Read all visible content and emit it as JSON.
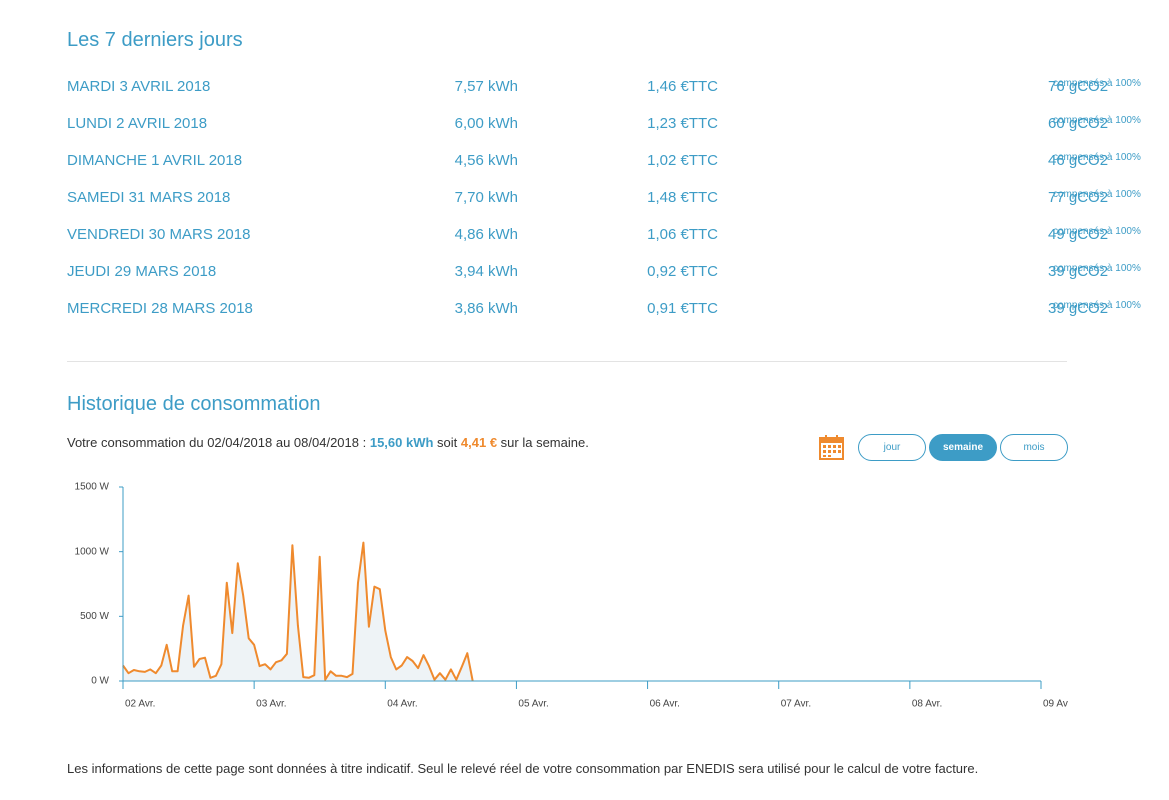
{
  "title": "Les 7 derniers jours",
  "rows": [
    {
      "date": "MARDI 3 AVRIL 2018",
      "kwh": "7,57 kWh",
      "price": "1,46 €TTC",
      "co2": "76 gCO2",
      "note": "compensés à 100%"
    },
    {
      "date": "LUNDI 2 AVRIL 2018",
      "kwh": "6,00 kWh",
      "price": "1,23 €TTC",
      "co2": "60 gCO2",
      "note": "compensés à 100%"
    },
    {
      "date": "DIMANCHE 1 AVRIL 2018",
      "kwh": "4,56 kWh",
      "price": "1,02 €TTC",
      "co2": "46 gCO2",
      "note": "compensés à 100%"
    },
    {
      "date": "SAMEDI 31 MARS 2018",
      "kwh": "7,70 kWh",
      "price": "1,48 €TTC",
      "co2": "77 gCO2",
      "note": "compensés à 100%"
    },
    {
      "date": "VENDREDI 30 MARS 2018",
      "kwh": "4,86 kWh",
      "price": "1,06 €TTC",
      "co2": "49 gCO2",
      "note": "compensés à 100%"
    },
    {
      "date": "JEUDI 29 MARS 2018",
      "kwh": "3,94 kWh",
      "price": "0,92 €TTC",
      "co2": "39 gCO2",
      "note": "compensés à 100%"
    },
    {
      "date": "MERCREDI 28 MARS 2018",
      "kwh": "3,86 kWh",
      "price": "0,91 €TTC",
      "co2": "39 gCO2",
      "note": "compensés à 100%"
    }
  ],
  "history_title": "Historique de consommation",
  "summary": {
    "prefix": "Votre consommation du 02/04/2018 au 08/04/2018 : ",
    "kwh": "15,60 kWh",
    "middle": " soit ",
    "eur": "4,41 €",
    "suffix": " sur la semaine."
  },
  "buttons": [
    "jour",
    "semaine",
    "mois"
  ],
  "active_button": 1,
  "footer": "Les informations de cette page sont données à titre indicatif. Seul le relevé réel de votre consommation par ENEDIS sera utilisé pour le calcul de votre facture.",
  "chart_data": {
    "type": "line",
    "color": "#ef8a2e",
    "fill": "#eef3f6",
    "x": [
      0,
      1,
      2,
      3,
      4,
      5,
      6,
      7,
      8,
      9,
      10,
      11,
      12,
      13,
      14,
      15,
      16,
      17,
      18,
      19,
      20,
      21,
      22,
      23,
      24,
      25,
      26,
      27,
      28,
      29,
      30,
      31,
      32,
      33,
      34,
      35,
      36,
      37,
      38,
      39,
      40,
      41,
      42,
      43,
      44,
      45,
      46,
      47,
      48,
      49,
      50,
      51,
      52,
      53,
      54,
      55,
      56,
      57,
      58,
      59,
      60,
      61,
      62,
      63,
      64
    ],
    "values": [
      120,
      60,
      85,
      75,
      70,
      90,
      60,
      120,
      280,
      75,
      75,
      430,
      660,
      110,
      170,
      180,
      25,
      40,
      130,
      760,
      370,
      910,
      660,
      330,
      280,
      115,
      130,
      90,
      145,
      160,
      210,
      1050,
      430,
      30,
      25,
      45,
      960,
      10,
      75,
      40,
      40,
      30,
      55,
      760,
      1070,
      420,
      730,
      710,
      390,
      185,
      90,
      120,
      185,
      155,
      100,
      200,
      115,
      10,
      60,
      10,
      90,
      10,
      110,
      215,
      0
    ],
    "xlim": [
      0,
      168
    ],
    "xticks": [
      {
        "value": 0,
        "label": "02 Avr."
      },
      {
        "value": 24,
        "label": "03 Avr."
      },
      {
        "value": 48,
        "label": "04 Avr."
      },
      {
        "value": 72,
        "label": "05 Avr."
      },
      {
        "value": 96,
        "label": "06 Avr."
      },
      {
        "value": 120,
        "label": "07 Avr."
      },
      {
        "value": 144,
        "label": "08 Avr."
      },
      {
        "value": 168,
        "label": "09 Av"
      }
    ],
    "ylim": [
      0,
      1500
    ],
    "yticks": [
      {
        "value": 0,
        "label": "0 W"
      },
      {
        "value": 500,
        "label": "500 W"
      },
      {
        "value": 1000,
        "label": "1000 W"
      },
      {
        "value": 1500,
        "label": "1500 W"
      }
    ]
  }
}
